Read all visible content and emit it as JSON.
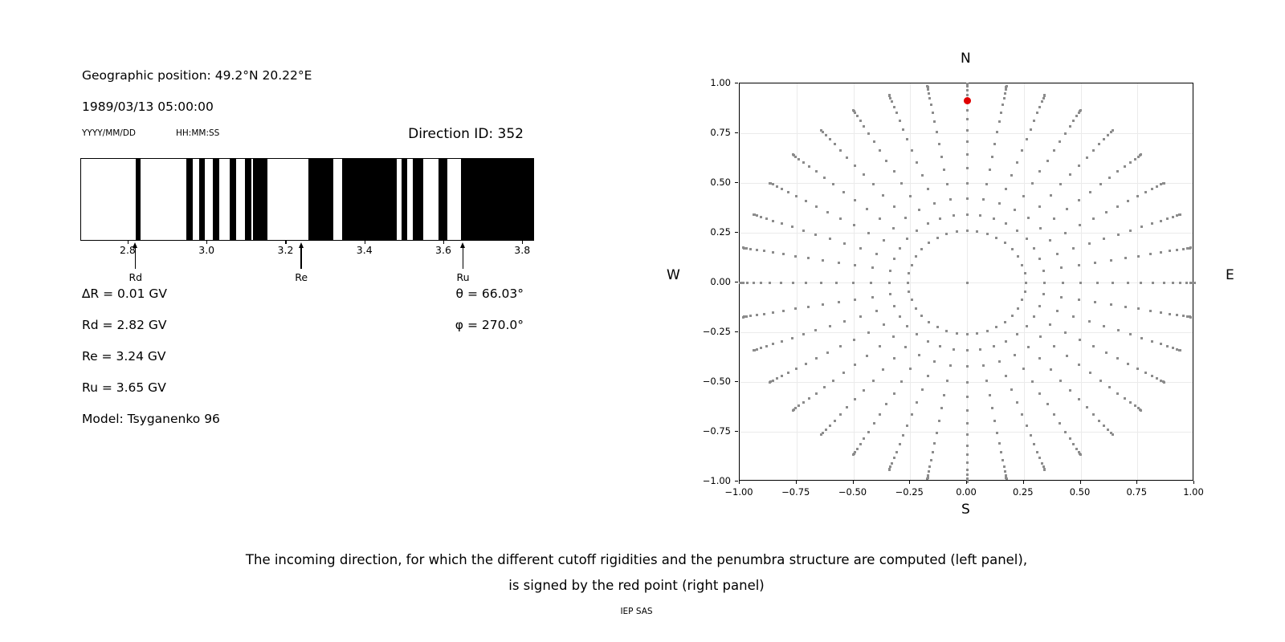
{
  "left_panel": {
    "geo_position": "Geographic position: 49.2°N 20.22°E",
    "datetime": "1989/03/13 05:00:00",
    "date_format_label": "YYYY/MM/DD",
    "time_format_label": "HH:MM:SS",
    "direction_id_label": "Direction ID: 352",
    "values_left": [
      "∆R = 0.01 GV",
      "Rd = 2.82 GV",
      "Re = 3.24 GV",
      "Ru = 3.65 GV",
      "Model: Tsyganenko 96"
    ],
    "values_right": [
      "θ = 66.03°",
      "φ = 270.0°"
    ]
  },
  "caption": {
    "lines": [
      "The incoming direction, for which the different cutoff rigidities and the penumbra structure are computed (left panel),",
      "is signed by the red point (right panel)"
    ],
    "credit": "IEP SAS"
  },
  "chart_data": [
    {
      "type": "barcode",
      "description": "Penumbra structure: black bands = forbidden rigidity intervals (GV)",
      "xlim": [
        2.68,
        3.83
      ],
      "ticks": [
        2.8,
        3.0,
        3.2,
        3.4,
        3.6,
        3.8
      ],
      "tick_labels": [
        "2.8",
        "3.0",
        "3.2",
        "3.4",
        "3.6",
        "3.8"
      ],
      "bars_gv": [
        [
          2.818,
          2.831
        ],
        [
          2.947,
          2.963
        ],
        [
          2.979,
          2.994
        ],
        [
          3.014,
          3.03
        ],
        [
          3.057,
          3.072
        ],
        [
          3.096,
          3.112
        ],
        [
          3.116,
          3.152
        ],
        [
          3.255,
          3.32
        ],
        [
          3.342,
          3.479
        ],
        [
          3.493,
          3.507
        ],
        [
          3.52,
          3.548
        ],
        [
          3.586,
          3.608
        ],
        [
          3.643,
          3.83
        ]
      ],
      "arrows": [
        {
          "label": "Rd",
          "value": 2.82
        },
        {
          "label": "Re",
          "value": 3.24
        },
        {
          "label": "Ru",
          "value": 3.65
        }
      ],
      "bar_color": "#000000",
      "grid": false
    },
    {
      "type": "scatter",
      "description": "Grid of incoming directions on sky hemisphere; r = sin(zenith)",
      "xlim": [
        -1.0,
        1.0
      ],
      "ylim": [
        -1.0,
        1.0
      ],
      "ticks": [
        -1.0,
        -0.75,
        -0.5,
        -0.25,
        0.0,
        0.25,
        0.5,
        0.75,
        1.0
      ],
      "x_tick_labels": [
        "−1.00",
        "−0.75",
        "−0.50",
        "−0.25",
        "0.00",
        "0.25",
        "0.50",
        "0.75",
        "1.00"
      ],
      "y_tick_labels": [
        "1.00",
        "0.75",
        "0.50",
        "0.25",
        "0.00",
        "−0.25",
        "−0.50",
        "−0.75",
        "−1.00"
      ],
      "compass": {
        "n": "N",
        "e": "E",
        "s": "S",
        "w": "W"
      },
      "grid": true,
      "pattern": {
        "azimuth_start_deg": 0,
        "azimuth_step_deg": 10,
        "azimuth_count": 36,
        "zenith_start_deg": 15,
        "zenith_step_deg": 5,
        "zenith_end_deg": 90,
        "radius_rule": "sin(zenith)",
        "center_dot": true
      },
      "red_point": {
        "x": 0.0,
        "y": 0.914
      },
      "colors": {
        "dots": "#8c8c8c",
        "red_point": "#e00000",
        "gridline": "#ebebeb"
      }
    }
  ]
}
